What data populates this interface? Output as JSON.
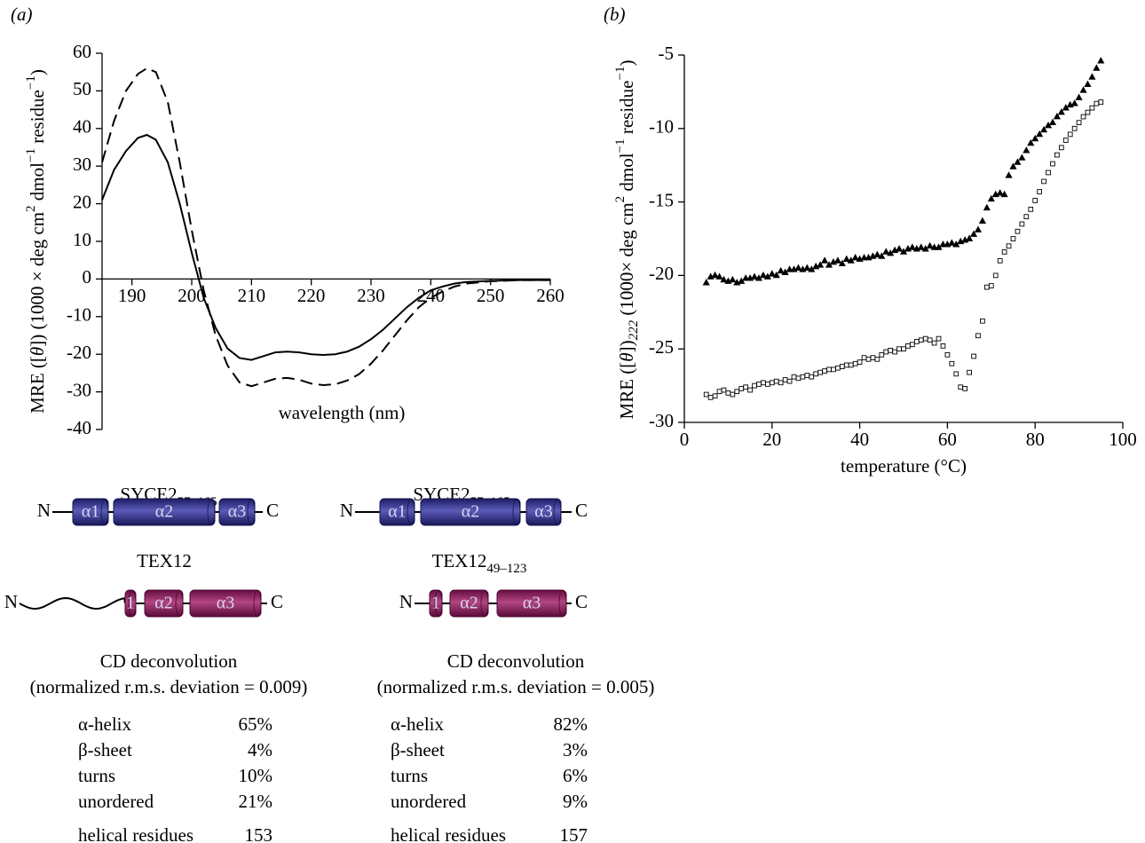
{
  "panel_labels": [
    "(a)",
    "(b)"
  ],
  "chart_data": [
    {
      "type": "line",
      "xlabel": "wavelength (nm)",
      "ylabel": [
        "MRE ([",
        "θ",
        "]) (1000 × deg cm",
        "2",
        " dmol",
        "−1",
        " residue",
        "−1",
        ")"
      ],
      "xaxis_position": "zero",
      "x": [
        185,
        187,
        189,
        191,
        192.5,
        194,
        196,
        198,
        200,
        201,
        202,
        204,
        206,
        208,
        210,
        212,
        214,
        216,
        218,
        220,
        222,
        224,
        226,
        228,
        230,
        232,
        234,
        236,
        238,
        240,
        242,
        244,
        246,
        250,
        255,
        260
      ],
      "series": [
        {
          "color": "#000000",
          "dashed": false,
          "values": [
            21,
            29,
            34,
            37.5,
            38.3,
            37,
            31,
            20,
            7,
            1,
            -5,
            -13,
            -18.5,
            -21,
            -21.5,
            -20.5,
            -19.5,
            -19.3,
            -19.5,
            -20,
            -20.2,
            -20,
            -19.3,
            -18,
            -16,
            -13.5,
            -10.5,
            -7.5,
            -5,
            -3,
            -2,
            -1.2,
            -0.8,
            -0.5,
            -0.3,
            -0.3
          ]
        },
        {
          "color": "#000000",
          "dashed": true,
          "values": [
            31,
            42,
            50,
            54.5,
            56,
            55,
            47,
            31,
            13,
            5,
            -3,
            -15,
            -23,
            -27.5,
            -28.5,
            -27.5,
            -26.5,
            -26.3,
            -26.8,
            -27.8,
            -28.2,
            -28,
            -27,
            -25.3,
            -22.5,
            -19,
            -15,
            -11,
            -7.5,
            -5,
            -3.3,
            -2,
            -1.2,
            -0.6,
            -0.3,
            -0.3
          ]
        }
      ],
      "xlim": [
        185,
        260
      ],
      "ylim": [
        -40,
        60
      ],
      "xticks": [
        190,
        200,
        210,
        220,
        230,
        240,
        250,
        260
      ],
      "yticks": [
        -40,
        -30,
        -20,
        -10,
        0,
        10,
        20,
        30,
        40,
        50,
        60
      ]
    },
    {
      "type": "scatter",
      "xlabel": "temperature (°C)",
      "ylabel": [
        "MRE ([",
        "θ",
        "])",
        "222",
        " (1000× deg cm",
        "2",
        " dmol",
        "−1",
        " residue",
        "−1",
        ")"
      ],
      "xaxis_position": "bottom",
      "x": [
        5,
        6,
        7,
        8,
        9,
        10,
        11,
        12,
        13,
        14,
        15,
        16,
        17,
        18,
        19,
        20,
        21,
        22,
        23,
        24,
        25,
        26,
        27,
        28,
        29,
        30,
        31,
        32,
        33,
        34,
        35,
        36,
        37,
        38,
        39,
        40,
        41,
        42,
        43,
        44,
        45,
        46,
        47,
        48,
        49,
        50,
        51,
        52,
        53,
        54,
        55,
        56,
        57,
        58,
        59,
        60,
        61,
        62,
        63,
        64,
        65,
        66,
        67,
        68,
        69,
        70,
        71,
        72,
        73,
        74,
        75,
        76,
        77,
        78,
        79,
        80,
        81,
        82,
        83,
        84,
        85,
        86,
        87,
        88,
        89,
        90,
        91,
        92,
        93,
        94,
        95
      ],
      "series": [
        {
          "color": "#000000",
          "marker": "triangle",
          "filled": true,
          "values": [
            -20.5,
            -20.1,
            -20.0,
            -20.1,
            -20.3,
            -20.4,
            -20.3,
            -20.5,
            -20.4,
            -20.2,
            -20.2,
            -20.1,
            -20.2,
            -20.0,
            -20.1,
            -19.9,
            -20.0,
            -19.7,
            -19.8,
            -19.6,
            -19.6,
            -19.5,
            -19.6,
            -19.5,
            -19.6,
            -19.4,
            -19.3,
            -19.0,
            -19.3,
            -19.1,
            -19.0,
            -19.2,
            -18.9,
            -19.0,
            -18.8,
            -18.9,
            -18.8,
            -18.8,
            -18.7,
            -18.6,
            -18.7,
            -18.4,
            -18.5,
            -18.3,
            -18.2,
            -18.4,
            -18.2,
            -18.1,
            -18.2,
            -18.1,
            -18.2,
            -18.0,
            -18.1,
            -18.1,
            -17.9,
            -17.9,
            -17.8,
            -17.9,
            -17.7,
            -17.6,
            -17.5,
            -17.2,
            -16.9,
            -16.3,
            -15.4,
            -14.8,
            -14.5,
            -14.4,
            -14.5,
            -13.2,
            -12.6,
            -12.3,
            -12.0,
            -11.5,
            -11.0,
            -10.7,
            -10.4,
            -10.1,
            -9.8,
            -9.6,
            -9.2,
            -8.9,
            -8.6,
            -8.4,
            -8.3,
            -7.9,
            -7.4,
            -7.0,
            -6.5,
            -5.9,
            -5.4
          ]
        },
        {
          "color": "#000000",
          "marker": "square",
          "filled": false,
          "values": [
            -28.1,
            -28.3,
            -28.2,
            -27.9,
            -27.8,
            -28.0,
            -28.1,
            -27.9,
            -27.7,
            -27.6,
            -27.8,
            -27.5,
            -27.4,
            -27.3,
            -27.4,
            -27.3,
            -27.2,
            -27.3,
            -27.1,
            -27.2,
            -26.9,
            -27.0,
            -26.9,
            -26.8,
            -26.9,
            -26.7,
            -26.6,
            -26.5,
            -26.4,
            -26.4,
            -26.3,
            -26.2,
            -26.1,
            -26.1,
            -26.0,
            -25.9,
            -25.6,
            -25.7,
            -25.6,
            -25.7,
            -25.4,
            -25.2,
            -25.1,
            -25.2,
            -25.0,
            -25.0,
            -24.8,
            -24.7,
            -24.5,
            -24.4,
            -24.3,
            -24.4,
            -24.6,
            -24.3,
            -24.8,
            -25.4,
            -26.0,
            -26.7,
            -27.6,
            -27.7,
            -26.6,
            -25.5,
            -24.1,
            -23.1,
            -20.8,
            -20.7,
            -20.0,
            -19.0,
            -18.4,
            -18.0,
            -17.5,
            -17.0,
            -16.5,
            -16.0,
            -15.5,
            -14.9,
            -14.3,
            -13.6,
            -13.0,
            -12.4,
            -11.8,
            -11.3,
            -10.8,
            -10.4,
            -10.0,
            -9.6,
            -9.2,
            -8.9,
            -8.6,
            -8.3,
            -8.2
          ]
        }
      ],
      "xlim": [
        0,
        100
      ],
      "ylim": [
        -30,
        -5
      ],
      "xticks": [
        0,
        20,
        40,
        60,
        80,
        100
      ],
      "yticks": [
        -30,
        -25,
        -20,
        -15,
        -10,
        -5
      ]
    }
  ],
  "diagrams": [
    {
      "title": "SYCE2",
      "subscript": "57–165",
      "n_label": "N",
      "c_label": "C",
      "helices": [
        "α1",
        "α2",
        "α3"
      ]
    },
    {
      "title": "TEX12",
      "n_label": "N",
      "c_label": "C",
      "helices": [
        "1",
        "α2",
        "α3"
      ]
    },
    {
      "title": "SYCE2",
      "subscript": "57–165",
      "n_label": "N",
      "c_label": "C",
      "helices": [
        "α1",
        "α2",
        "α3"
      ]
    },
    {
      "title": "TEX12",
      "subscript": "49–123",
      "n_label": "N",
      "c_label": "C",
      "helices": [
        "1",
        "α2",
        "α3"
      ]
    }
  ],
  "deconvolution": [
    {
      "title": "CD deconvolution",
      "subtitle": "(normalized r.m.s. deviation = 0.009)",
      "rows": [
        [
          "α-helix",
          "65%"
        ],
        [
          "β-sheet",
          "4%"
        ],
        [
          "turns",
          "10%"
        ],
        [
          "unordered",
          "21%"
        ],
        [
          "helical residues",
          "153"
        ]
      ]
    },
    {
      "title": "CD deconvolution",
      "subtitle": "(normalized r.m.s. deviation = 0.005)",
      "rows": [
        [
          "α-helix",
          "82%"
        ],
        [
          "β-sheet",
          "3%"
        ],
        [
          "turns",
          "6%"
        ],
        [
          "unordered",
          "9%"
        ],
        [
          "helical residues",
          "157"
        ]
      ]
    }
  ]
}
